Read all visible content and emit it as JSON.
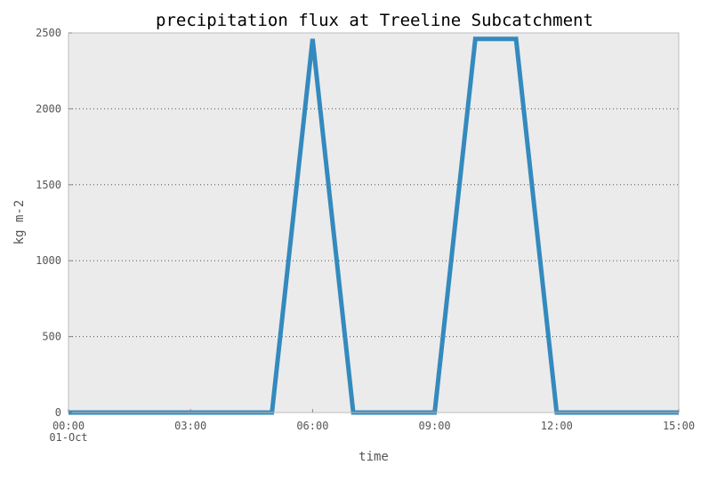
{
  "chart_data": {
    "type": "line",
    "title": "precipitation flux at Treeline Subcatchment",
    "xlabel": "time",
    "ylabel": "kg m-2",
    "xlim": [
      "00:00",
      "15:00"
    ],
    "ylim": [
      0,
      2500
    ],
    "x_ticks": [
      {
        "value": 0,
        "label": "00:00",
        "sublabel": "01-Oct"
      },
      {
        "value": 3,
        "label": "03:00",
        "sublabel": ""
      },
      {
        "value": 6,
        "label": "06:00",
        "sublabel": ""
      },
      {
        "value": 9,
        "label": "09:00",
        "sublabel": ""
      },
      {
        "value": 12,
        "label": "12:00",
        "sublabel": ""
      },
      {
        "value": 15,
        "label": "15:00",
        "sublabel": ""
      }
    ],
    "y_ticks": [
      0,
      500,
      1000,
      1500,
      2000,
      2500
    ],
    "grid": "horizontal dotted",
    "background": "#ebebeb",
    "series": [
      {
        "color": "#348abd",
        "x": [
          "00:00",
          "01:00",
          "02:00",
          "03:00",
          "04:00",
          "05:00",
          "06:00",
          "07:00",
          "08:00",
          "09:00",
          "10:00",
          "11:00",
          "12:00",
          "13:00",
          "14:00",
          "15:00"
        ],
        "values": [
          0,
          0,
          0,
          0,
          0,
          0,
          2460,
          0,
          0,
          0,
          2460,
          2460,
          0,
          0,
          0,
          0
        ]
      }
    ]
  }
}
